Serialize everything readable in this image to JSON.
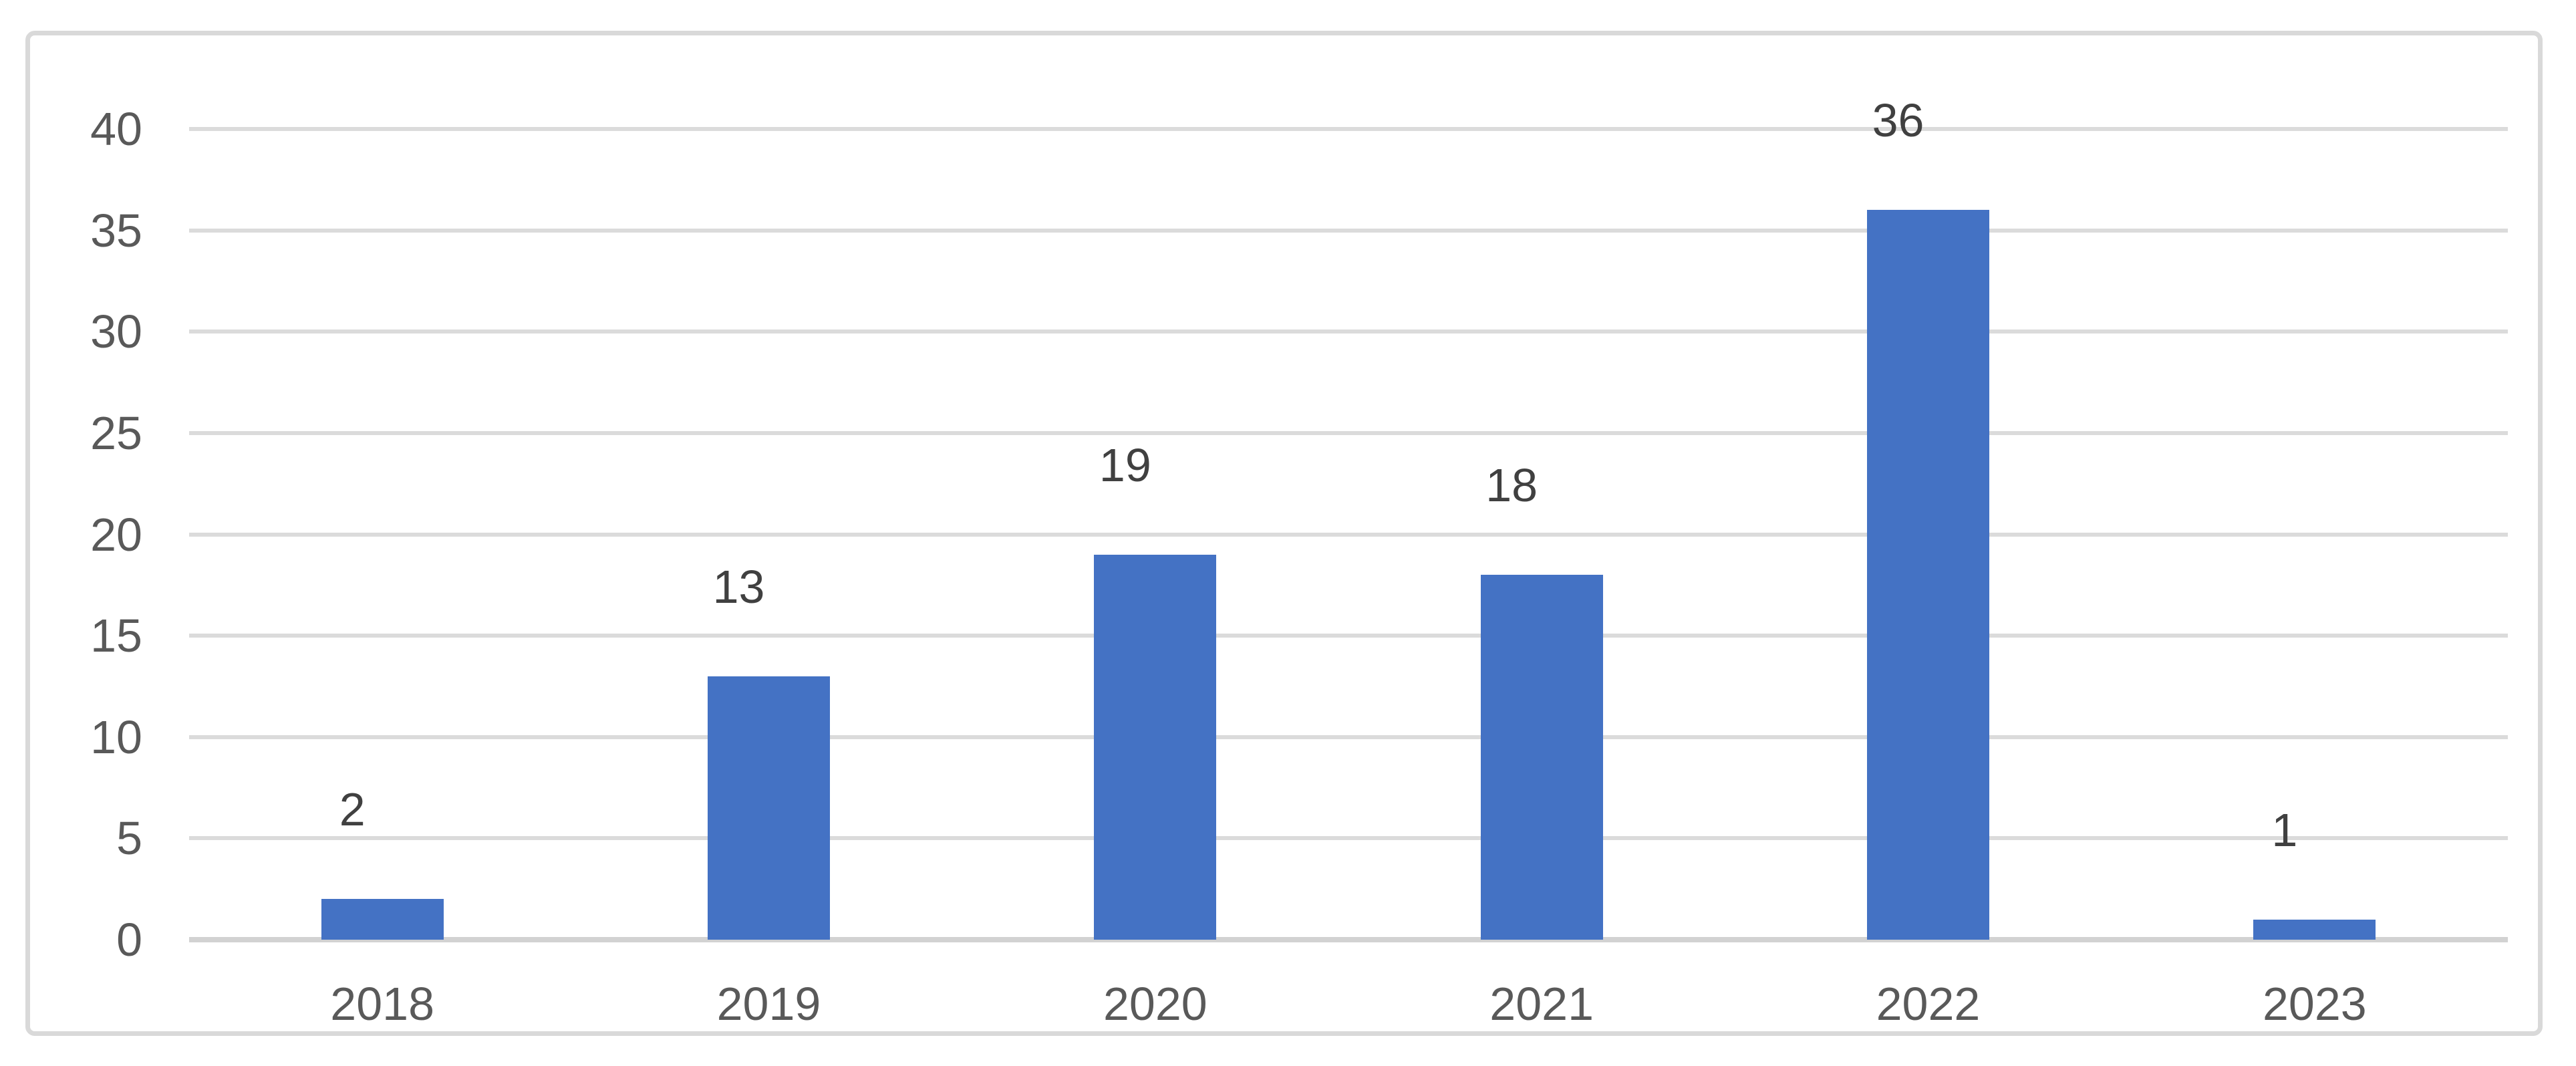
{
  "chart_data": {
    "type": "bar",
    "title": "",
    "xlabel": "",
    "ylabel": "",
    "categories": [
      "2018",
      "2019",
      "2020",
      "2021",
      "2022",
      "2023"
    ],
    "values": [
      2,
      13,
      19,
      18,
      36,
      1
    ],
    "data_labels": [
      "2",
      "13",
      "19",
      "18",
      "36",
      "1"
    ],
    "yticks": [
      0,
      5,
      10,
      15,
      20,
      25,
      30,
      35,
      40
    ],
    "ylim": [
      0,
      40
    ],
    "grid": "horizontal",
    "legend_position": "none"
  },
  "colors": {
    "bar": "#4472C4",
    "gridline": "#DBDBDB",
    "axis_line": "#D2D2D2",
    "chart_border": "#D9D9D9",
    "axis_text": "#595959",
    "data_label_text": "#404040",
    "background": "#FFFFFF"
  }
}
